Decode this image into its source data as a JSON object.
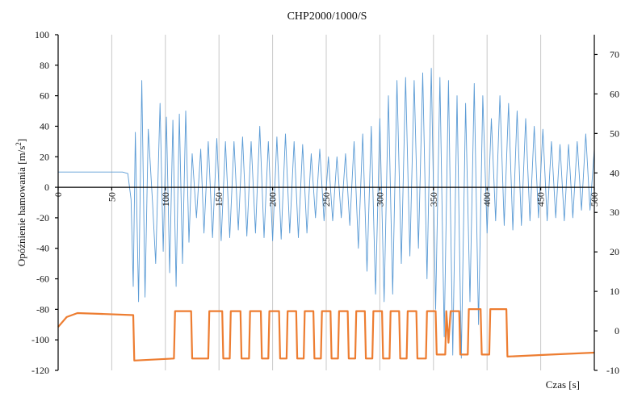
{
  "chart_data": {
    "type": "line",
    "title": "CHP2000/1000/S",
    "xlabel": "Czas [s]",
    "ylabel": "Opóźnienie hamowania [m/s",
    "ylabel_sup": "2",
    "ylabel_suffix": "]",
    "xlim": [
      0,
      500
    ],
    "ylim": [
      -120,
      100
    ],
    "y2lim": [
      -10,
      75
    ],
    "x_ticks": [
      0,
      50,
      100,
      150,
      200,
      250,
      300,
      350,
      400,
      450,
      500
    ],
    "y_ticks": [
      -120,
      -100,
      -80,
      -60,
      -40,
      -20,
      0,
      20,
      40,
      60,
      80,
      100
    ],
    "y2_ticks": [
      -10,
      0,
      10,
      20,
      30,
      40,
      50,
      60,
      70
    ],
    "grid": "vertical",
    "colors": {
      "series1": "#5b9bd5",
      "series2": "#ed7d31"
    },
    "series": [
      {
        "axis": "left",
        "points": [
          [
            0,
            10
          ],
          [
            60,
            10
          ],
          [
            65,
            9
          ],
          [
            68,
            -8
          ],
          [
            70,
            -65
          ],
          [
            72,
            36
          ],
          [
            75,
            -75
          ],
          [
            78,
            70
          ],
          [
            81,
            -72
          ],
          [
            84,
            38
          ],
          [
            88,
            -10
          ],
          [
            91,
            -50
          ],
          [
            95,
            55
          ],
          [
            98,
            -42
          ],
          [
            101,
            46
          ],
          [
            104,
            -56
          ],
          [
            107,
            44
          ],
          [
            110,
            -65
          ],
          [
            113,
            48
          ],
          [
            116,
            -50
          ],
          [
            119,
            50
          ],
          [
            122,
            -36
          ],
          [
            125,
            22
          ],
          [
            129,
            -20
          ],
          [
            133,
            25
          ],
          [
            136,
            -30
          ],
          [
            140,
            30
          ],
          [
            144,
            -33
          ],
          [
            148,
            32
          ],
          [
            152,
            -35
          ],
          [
            156,
            30
          ],
          [
            160,
            -33
          ],
          [
            164,
            30
          ],
          [
            168,
            -28
          ],
          [
            172,
            33
          ],
          [
            176,
            -32
          ],
          [
            180,
            30
          ],
          [
            184,
            -30
          ],
          [
            188,
            40
          ],
          [
            192,
            -33
          ],
          [
            196,
            30
          ],
          [
            200,
            -35
          ],
          [
            204,
            33
          ],
          [
            208,
            -34
          ],
          [
            212,
            35
          ],
          [
            216,
            -30
          ],
          [
            220,
            30
          ],
          [
            224,
            -33
          ],
          [
            228,
            28
          ],
          [
            232,
            -30
          ],
          [
            236,
            22
          ],
          [
            240,
            -20
          ],
          [
            244,
            25
          ],
          [
            248,
            -22
          ],
          [
            252,
            20
          ],
          [
            256,
            -22
          ],
          [
            260,
            20
          ],
          [
            264,
            -20
          ],
          [
            268,
            22
          ],
          [
            272,
            -25
          ],
          [
            276,
            30
          ],
          [
            280,
            -40
          ],
          [
            284,
            35
          ],
          [
            288,
            -55
          ],
          [
            292,
            40
          ],
          [
            296,
            -70
          ],
          [
            300,
            45
          ],
          [
            304,
            -75
          ],
          [
            308,
            60
          ],
          [
            312,
            -70
          ],
          [
            316,
            70
          ],
          [
            320,
            -50
          ],
          [
            324,
            72
          ],
          [
            328,
            -45
          ],
          [
            332,
            70
          ],
          [
            336,
            -40
          ],
          [
            340,
            75
          ],
          [
            344,
            -60
          ],
          [
            348,
            78
          ],
          [
            352,
            -80
          ],
          [
            356,
            72
          ],
          [
            360,
            -98
          ],
          [
            364,
            70
          ],
          [
            368,
            -110
          ],
          [
            372,
            60
          ],
          [
            376,
            -112
          ],
          [
            380,
            55
          ],
          [
            384,
            -75
          ],
          [
            388,
            68
          ],
          [
            392,
            -90
          ],
          [
            396,
            60
          ],
          [
            400,
            -30
          ],
          [
            404,
            45
          ],
          [
            408,
            -22
          ],
          [
            412,
            60
          ],
          [
            416,
            -25
          ],
          [
            420,
            55
          ],
          [
            424,
            -28
          ],
          [
            428,
            50
          ],
          [
            432,
            -25
          ],
          [
            436,
            45
          ],
          [
            440,
            -22
          ],
          [
            444,
            40
          ],
          [
            448,
            -20
          ],
          [
            452,
            38
          ],
          [
            456,
            -22
          ],
          [
            460,
            30
          ],
          [
            464,
            -20
          ],
          [
            468,
            28
          ],
          [
            472,
            -22
          ],
          [
            476,
            28
          ],
          [
            480,
            -20
          ],
          [
            484,
            30
          ],
          [
            488,
            -15
          ],
          [
            492,
            35
          ],
          [
            496,
            -15
          ],
          [
            500,
            25
          ]
        ]
      },
      {
        "axis": "right",
        "points": [
          [
            0,
            1
          ],
          [
            8,
            3.5
          ],
          [
            18,
            4.5
          ],
          [
            40,
            4.3
          ],
          [
            70,
            4
          ],
          [
            71,
            -7.5
          ],
          [
            108,
            -7
          ],
          [
            109,
            5
          ],
          [
            124,
            5
          ],
          [
            125,
            -7
          ],
          [
            140,
            -7
          ],
          [
            141,
            5
          ],
          [
            153,
            5
          ],
          [
            154,
            -7
          ],
          [
            160,
            -7
          ],
          [
            161,
            5
          ],
          [
            170,
            5
          ],
          [
            171,
            -7
          ],
          [
            178,
            -7
          ],
          [
            179,
            5
          ],
          [
            189,
            5
          ],
          [
            190,
            -7
          ],
          [
            196,
            -7
          ],
          [
            197,
            5
          ],
          [
            206,
            5
          ],
          [
            207,
            -7
          ],
          [
            213,
            -7
          ],
          [
            214,
            5
          ],
          [
            222,
            5
          ],
          [
            223,
            -7
          ],
          [
            229,
            -7
          ],
          [
            230,
            5
          ],
          [
            238,
            5
          ],
          [
            239,
            -7
          ],
          [
            245,
            -7
          ],
          [
            246,
            5
          ],
          [
            254,
            5
          ],
          [
            255,
            -7
          ],
          [
            261,
            -7
          ],
          [
            262,
            5
          ],
          [
            270,
            5
          ],
          [
            271,
            -7
          ],
          [
            277,
            -7
          ],
          [
            278,
            5
          ],
          [
            286,
            5
          ],
          [
            287,
            -7
          ],
          [
            293,
            -7
          ],
          [
            294,
            5
          ],
          [
            302,
            5
          ],
          [
            303,
            -7
          ],
          [
            309,
            -7
          ],
          [
            310,
            5
          ],
          [
            318,
            5
          ],
          [
            319,
            -7
          ],
          [
            325,
            -7
          ],
          [
            326,
            5
          ],
          [
            334,
            5
          ],
          [
            335,
            -7
          ],
          [
            343,
            -7
          ],
          [
            344,
            5
          ],
          [
            352,
            5
          ],
          [
            353,
            -6
          ],
          [
            361,
            -6
          ],
          [
            362,
            5
          ],
          [
            364,
            -3
          ],
          [
            366,
            5
          ],
          [
            374,
            5
          ],
          [
            375,
            -6
          ],
          [
            382,
            -6
          ],
          [
            383,
            5.5
          ],
          [
            394,
            5.5
          ],
          [
            395,
            -6
          ],
          [
            402,
            -6
          ],
          [
            403,
            5.5
          ],
          [
            418,
            5.5
          ],
          [
            419,
            -6.5
          ],
          [
            460,
            -6
          ],
          [
            500,
            -5.5
          ]
        ]
      }
    ]
  }
}
